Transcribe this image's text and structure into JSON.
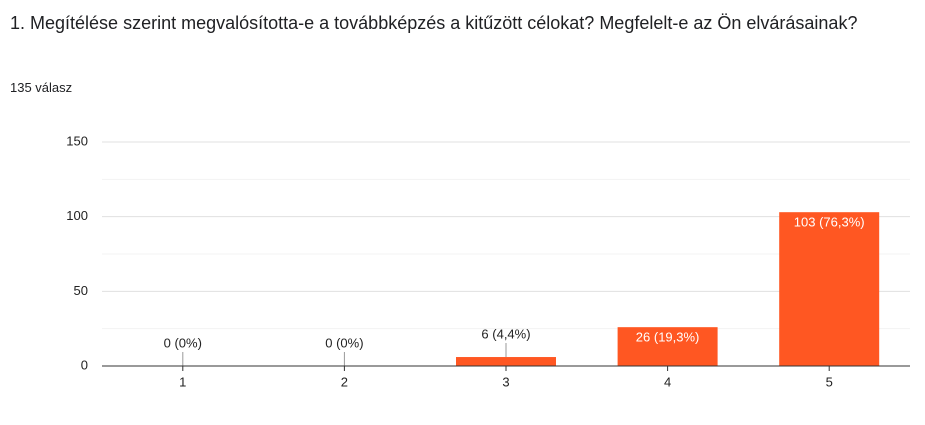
{
  "chart_data": {
    "type": "bar",
    "title": "1. Megítélése szerint megvalósította-e a továbbképzés a kitűzött célokat? Megfelelt-e az Ön elvárásainak?",
    "subtitle": "135 válasz",
    "categories": [
      "1",
      "2",
      "3",
      "4",
      "5"
    ],
    "values": [
      0,
      0,
      6,
      26,
      103
    ],
    "value_labels": [
      "0 (0%)",
      "0 (0%)",
      "6 (4,4%)",
      "26 (19,3%)",
      "103 (76,3%)"
    ],
    "color": "#ff5722",
    "ylim": [
      0,
      150
    ],
    "yticks": [
      0,
      50,
      100,
      150
    ],
    "minor_gridlines": [
      25,
      75,
      125
    ],
    "grid": true
  }
}
